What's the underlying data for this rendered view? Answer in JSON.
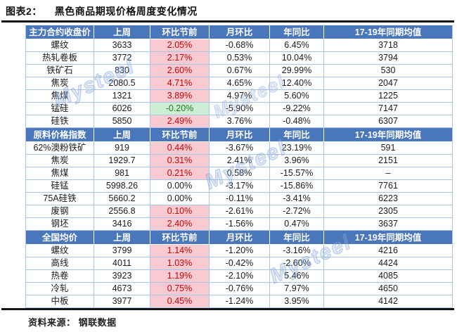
{
  "title": {
    "label": "图表2：",
    "text": "黑色商品期现价格周度变化情况"
  },
  "footer": {
    "source_label": "资料来源：",
    "source_value": "钢联数据"
  },
  "watermark": "Mysteel",
  "colors": {
    "header_bg": "#4a76bb",
    "grid_line": "#a9c5e8",
    "positive_cell_bg": "#f8cbd2",
    "positive_text": "#d10000",
    "negative_cell_bg": "#cdeed3",
    "negative_text": "#1d7d1d",
    "rule": "#141414"
  },
  "table": {
    "sections": [
      {
        "header": [
          "主力合约收盘价",
          "上周",
          "环比节前",
          "月环比",
          "年同比",
          "17-19年同期均值"
        ],
        "rows": [
          {
            "cells": [
              "螺纹",
              "3633",
              "2.05%",
              "-0.68%",
              "6.45%",
              "3718"
            ],
            "wow": "pos"
          },
          {
            "cells": [
              "热轧卷板",
              "3772",
              "2.17%",
              "0.53%",
              "10.04%",
              "3794"
            ],
            "wow": "pos"
          },
          {
            "cells": [
              "铁矿石",
              "830",
              "2.60%",
              "0.67%",
              "29.99%",
              "530"
            ],
            "wow": "pos"
          },
          {
            "cells": [
              "焦炭",
              "2080.5",
              "4.71%",
              "4.65%",
              "12.40%",
              "2047"
            ],
            "wow": "pos"
          },
          {
            "cells": [
              "焦煤",
              "1321",
              "3.89%",
              "4.97%",
              "5.60%",
              "1225"
            ],
            "wow": "pos"
          },
          {
            "cells": [
              "锰硅",
              "6026",
              "-0.20%",
              "-5.90%",
              "-9.22%",
              "7147"
            ],
            "wow": "neg"
          },
          {
            "cells": [
              "硅铁",
              "5850",
              "2.49%",
              "3.76%",
              "-0.48%",
              "6307"
            ],
            "wow": "pos"
          }
        ]
      },
      {
        "header": [
          "原料价格指数",
          "上周",
          "环比节前",
          "月环比",
          "年同比",
          "17-19年同期均值"
        ],
        "rows": [
          {
            "cells": [
              "62%澳粉铁矿",
              "919",
              "0.44%",
              "-3.67%",
              "23.19%",
              "591"
            ],
            "wow": "pos"
          },
          {
            "cells": [
              "焦炭",
              "1929.7",
              "0.31%",
              "2.41%",
              "3.96%",
              "2151"
            ],
            "wow": "pos"
          },
          {
            "cells": [
              "焦煤",
              "981",
              "0.21%",
              "0.58%",
              "-15.57%",
              "–"
            ],
            "wow": "pos"
          },
          {
            "cells": [
              "硅锰",
              "5998.26",
              "0.00%",
              "-3.17%",
              "-15.86%",
              "7761"
            ],
            "wow": "zero"
          },
          {
            "cells": [
              "75A硅铁",
              "5660.2",
              "0.00%",
              "-0.11%",
              "-3.41%",
              "6223"
            ],
            "wow": "zero"
          },
          {
            "cells": [
              "废钢",
              "2556.8",
              "0.10%",
              "-2.61%",
              "-2.72%",
              "2305"
            ],
            "wow": "pos"
          },
          {
            "cells": [
              "钢坯",
              "3416",
              "2.40%",
              "-1.56%",
              "0.47%",
              "3637"
            ],
            "wow": "pos"
          }
        ]
      },
      {
        "header": [
          "全国均价",
          "上周",
          "环比节前",
          "月环比",
          "年同比",
          "17-19年同期均值"
        ],
        "rows": [
          {
            "cells": [
              "螺纹",
              "3799",
              "1.14%",
              "-1.20%",
              "-3.16%",
              "4216"
            ],
            "wow": "pos"
          },
          {
            "cells": [
              "高线",
              "4011",
              "1.03%",
              "-0.42%",
              "-2.60%",
              "4424"
            ],
            "wow": "pos"
          },
          {
            "cells": [
              "热卷",
              "3923",
              "1.19%",
              "-2.10%",
              "5.46%",
              "4085"
            ],
            "wow": "pos"
          },
          {
            "cells": [
              "冷轧",
              "4673",
              "0.75%",
              "-0.76%",
              "7.97%",
              "4650"
            ],
            "wow": "pos"
          },
          {
            "cells": [
              "中板",
              "3977",
              "0.45%",
              "-1.24%",
              "3.95%",
              "4142"
            ],
            "wow": "pos"
          }
        ]
      }
    ]
  }
}
